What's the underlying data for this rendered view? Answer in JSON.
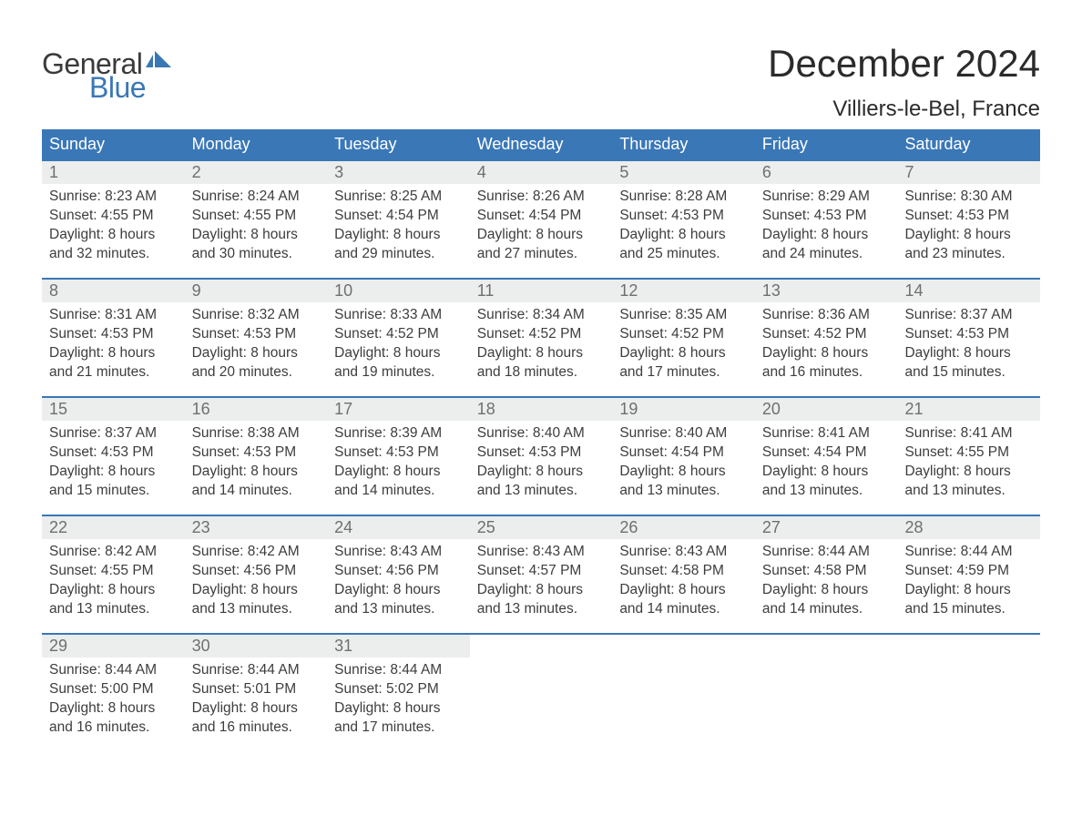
{
  "logo": {
    "line1": "General",
    "line2": "Blue",
    "brand_color": "#3a77b6"
  },
  "title": "December 2024",
  "location": "Villiers-le-Bel, France",
  "colors": {
    "header_bg": "#3a77b6",
    "header_text": "#ffffff",
    "daynum_bg": "#eceded",
    "daynum_text": "#6f6f6f",
    "body_text": "#3d3d3d",
    "week_border": "#3a77b6",
    "page_bg": "#ffffff"
  },
  "day_headers": [
    "Sunday",
    "Monday",
    "Tuesday",
    "Wednesday",
    "Thursday",
    "Friday",
    "Saturday"
  ],
  "weeks": [
    [
      {
        "n": "1",
        "sunrise": "Sunrise: 8:23 AM",
        "sunset": "Sunset: 4:55 PM",
        "daylight1": "Daylight: 8 hours",
        "daylight2": "and 32 minutes."
      },
      {
        "n": "2",
        "sunrise": "Sunrise: 8:24 AM",
        "sunset": "Sunset: 4:55 PM",
        "daylight1": "Daylight: 8 hours",
        "daylight2": "and 30 minutes."
      },
      {
        "n": "3",
        "sunrise": "Sunrise: 8:25 AM",
        "sunset": "Sunset: 4:54 PM",
        "daylight1": "Daylight: 8 hours",
        "daylight2": "and 29 minutes."
      },
      {
        "n": "4",
        "sunrise": "Sunrise: 8:26 AM",
        "sunset": "Sunset: 4:54 PM",
        "daylight1": "Daylight: 8 hours",
        "daylight2": "and 27 minutes."
      },
      {
        "n": "5",
        "sunrise": "Sunrise: 8:28 AM",
        "sunset": "Sunset: 4:53 PM",
        "daylight1": "Daylight: 8 hours",
        "daylight2": "and 25 minutes."
      },
      {
        "n": "6",
        "sunrise": "Sunrise: 8:29 AM",
        "sunset": "Sunset: 4:53 PM",
        "daylight1": "Daylight: 8 hours",
        "daylight2": "and 24 minutes."
      },
      {
        "n": "7",
        "sunrise": "Sunrise: 8:30 AM",
        "sunset": "Sunset: 4:53 PM",
        "daylight1": "Daylight: 8 hours",
        "daylight2": "and 23 minutes."
      }
    ],
    [
      {
        "n": "8",
        "sunrise": "Sunrise: 8:31 AM",
        "sunset": "Sunset: 4:53 PM",
        "daylight1": "Daylight: 8 hours",
        "daylight2": "and 21 minutes."
      },
      {
        "n": "9",
        "sunrise": "Sunrise: 8:32 AM",
        "sunset": "Sunset: 4:53 PM",
        "daylight1": "Daylight: 8 hours",
        "daylight2": "and 20 minutes."
      },
      {
        "n": "10",
        "sunrise": "Sunrise: 8:33 AM",
        "sunset": "Sunset: 4:52 PM",
        "daylight1": "Daylight: 8 hours",
        "daylight2": "and 19 minutes."
      },
      {
        "n": "11",
        "sunrise": "Sunrise: 8:34 AM",
        "sunset": "Sunset: 4:52 PM",
        "daylight1": "Daylight: 8 hours",
        "daylight2": "and 18 minutes."
      },
      {
        "n": "12",
        "sunrise": "Sunrise: 8:35 AM",
        "sunset": "Sunset: 4:52 PM",
        "daylight1": "Daylight: 8 hours",
        "daylight2": "and 17 minutes."
      },
      {
        "n": "13",
        "sunrise": "Sunrise: 8:36 AM",
        "sunset": "Sunset: 4:52 PM",
        "daylight1": "Daylight: 8 hours",
        "daylight2": "and 16 minutes."
      },
      {
        "n": "14",
        "sunrise": "Sunrise: 8:37 AM",
        "sunset": "Sunset: 4:53 PM",
        "daylight1": "Daylight: 8 hours",
        "daylight2": "and 15 minutes."
      }
    ],
    [
      {
        "n": "15",
        "sunrise": "Sunrise: 8:37 AM",
        "sunset": "Sunset: 4:53 PM",
        "daylight1": "Daylight: 8 hours",
        "daylight2": "and 15 minutes."
      },
      {
        "n": "16",
        "sunrise": "Sunrise: 8:38 AM",
        "sunset": "Sunset: 4:53 PM",
        "daylight1": "Daylight: 8 hours",
        "daylight2": "and 14 minutes."
      },
      {
        "n": "17",
        "sunrise": "Sunrise: 8:39 AM",
        "sunset": "Sunset: 4:53 PM",
        "daylight1": "Daylight: 8 hours",
        "daylight2": "and 14 minutes."
      },
      {
        "n": "18",
        "sunrise": "Sunrise: 8:40 AM",
        "sunset": "Sunset: 4:53 PM",
        "daylight1": "Daylight: 8 hours",
        "daylight2": "and 13 minutes."
      },
      {
        "n": "19",
        "sunrise": "Sunrise: 8:40 AM",
        "sunset": "Sunset: 4:54 PM",
        "daylight1": "Daylight: 8 hours",
        "daylight2": "and 13 minutes."
      },
      {
        "n": "20",
        "sunrise": "Sunrise: 8:41 AM",
        "sunset": "Sunset: 4:54 PM",
        "daylight1": "Daylight: 8 hours",
        "daylight2": "and 13 minutes."
      },
      {
        "n": "21",
        "sunrise": "Sunrise: 8:41 AM",
        "sunset": "Sunset: 4:55 PM",
        "daylight1": "Daylight: 8 hours",
        "daylight2": "and 13 minutes."
      }
    ],
    [
      {
        "n": "22",
        "sunrise": "Sunrise: 8:42 AM",
        "sunset": "Sunset: 4:55 PM",
        "daylight1": "Daylight: 8 hours",
        "daylight2": "and 13 minutes."
      },
      {
        "n": "23",
        "sunrise": "Sunrise: 8:42 AM",
        "sunset": "Sunset: 4:56 PM",
        "daylight1": "Daylight: 8 hours",
        "daylight2": "and 13 minutes."
      },
      {
        "n": "24",
        "sunrise": "Sunrise: 8:43 AM",
        "sunset": "Sunset: 4:56 PM",
        "daylight1": "Daylight: 8 hours",
        "daylight2": "and 13 minutes."
      },
      {
        "n": "25",
        "sunrise": "Sunrise: 8:43 AM",
        "sunset": "Sunset: 4:57 PM",
        "daylight1": "Daylight: 8 hours",
        "daylight2": "and 13 minutes."
      },
      {
        "n": "26",
        "sunrise": "Sunrise: 8:43 AM",
        "sunset": "Sunset: 4:58 PM",
        "daylight1": "Daylight: 8 hours",
        "daylight2": "and 14 minutes."
      },
      {
        "n": "27",
        "sunrise": "Sunrise: 8:44 AM",
        "sunset": "Sunset: 4:58 PM",
        "daylight1": "Daylight: 8 hours",
        "daylight2": "and 14 minutes."
      },
      {
        "n": "28",
        "sunrise": "Sunrise: 8:44 AM",
        "sunset": "Sunset: 4:59 PM",
        "daylight1": "Daylight: 8 hours",
        "daylight2": "and 15 minutes."
      }
    ],
    [
      {
        "n": "29",
        "sunrise": "Sunrise: 8:44 AM",
        "sunset": "Sunset: 5:00 PM",
        "daylight1": "Daylight: 8 hours",
        "daylight2": "and 16 minutes."
      },
      {
        "n": "30",
        "sunrise": "Sunrise: 8:44 AM",
        "sunset": "Sunset: 5:01 PM",
        "daylight1": "Daylight: 8 hours",
        "daylight2": "and 16 minutes."
      },
      {
        "n": "31",
        "sunrise": "Sunrise: 8:44 AM",
        "sunset": "Sunset: 5:02 PM",
        "daylight1": "Daylight: 8 hours",
        "daylight2": "and 17 minutes."
      },
      {
        "empty": true
      },
      {
        "empty": true
      },
      {
        "empty": true
      },
      {
        "empty": true
      }
    ]
  ]
}
